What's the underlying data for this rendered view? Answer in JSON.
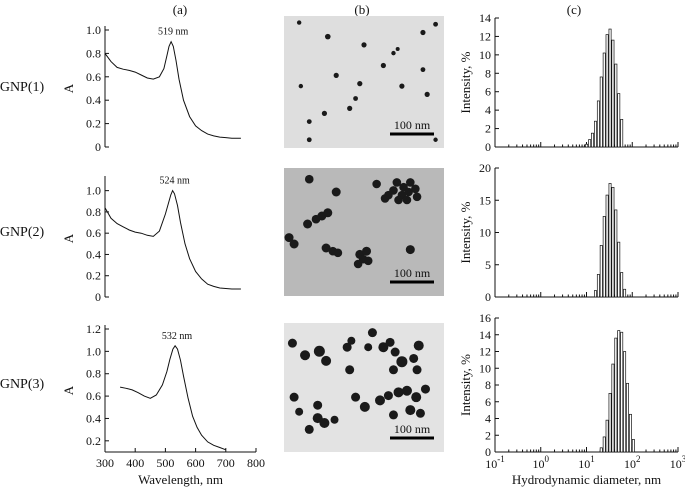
{
  "panel_labels": [
    "(a)",
    "(b)",
    "(c)"
  ],
  "rows": [
    {
      "label": "GNP(1)",
      "peak_label": "519 nm",
      "scale_label": "100 nm"
    },
    {
      "label": "GNP(2)",
      "peak_label": "524 nm",
      "scale_label": "100 nm"
    },
    {
      "label": "GNP(3)",
      "peak_label": "532 nm",
      "scale_label": "100 nm"
    }
  ],
  "chart_data": [
    {
      "type": "line",
      "panel": "a",
      "row": "GNP(1)",
      "xlabel": "",
      "ylabel": "A",
      "xlim": [
        300,
        800
      ],
      "ylim": [
        0,
        1.0
      ],
      "yticks": [
        "0",
        "0.2",
        "0.4",
        "0.6",
        "0.8",
        "1.0"
      ],
      "peak": {
        "x": 519,
        "y": 0.9
      },
      "series": [
        {
          "x": [
            300,
            320,
            340,
            360,
            380,
            400,
            420,
            440,
            460,
            480,
            495,
            505,
            512,
            519,
            526,
            535,
            545,
            560,
            580,
            600,
            620,
            640,
            660,
            680,
            700,
            720,
            750
          ],
          "y": [
            0.8,
            0.73,
            0.68,
            0.665,
            0.655,
            0.64,
            0.615,
            0.59,
            0.58,
            0.6,
            0.67,
            0.78,
            0.86,
            0.9,
            0.86,
            0.74,
            0.58,
            0.4,
            0.26,
            0.18,
            0.14,
            0.11,
            0.095,
            0.085,
            0.08,
            0.075,
            0.075
          ]
        }
      ]
    },
    {
      "type": "line",
      "panel": "a",
      "row": "GNP(2)",
      "xlabel": "",
      "ylabel": "A",
      "xlim": [
        300,
        800
      ],
      "ylim": [
        0,
        1.1
      ],
      "yticks": [
        "0",
        "0.2",
        "0.4",
        "0.6",
        "0.8",
        "1.0"
      ],
      "peak": {
        "x": 524,
        "y": 1.0
      },
      "series": [
        {
          "x": [
            300,
            320,
            340,
            360,
            380,
            400,
            420,
            440,
            460,
            480,
            500,
            510,
            518,
            524,
            530,
            540,
            550,
            565,
            580,
            600,
            620,
            640,
            660,
            680,
            700,
            720,
            750
          ],
          "y": [
            0.84,
            0.74,
            0.69,
            0.66,
            0.63,
            0.61,
            0.6,
            0.58,
            0.57,
            0.62,
            0.78,
            0.88,
            0.96,
            1.0,
            0.97,
            0.86,
            0.7,
            0.5,
            0.36,
            0.24,
            0.17,
            0.12,
            0.1,
            0.085,
            0.08,
            0.075,
            0.075
          ]
        }
      ]
    },
    {
      "type": "line",
      "panel": "a",
      "row": "GNP(3)",
      "xlabel": "Wavelength, nm",
      "ylabel": "A",
      "xlim": [
        300,
        800
      ],
      "ylim": [
        0.1,
        1.2
      ],
      "xticks": [
        "300",
        "400",
        "500",
        "600",
        "700",
        "800"
      ],
      "yticks": [
        "0.2",
        "0.4",
        "0.6",
        "0.8",
        "1.0",
        "1.2"
      ],
      "peak": {
        "x": 532,
        "y": 1.05
      },
      "series": [
        {
          "x": [
            350,
            370,
            390,
            410,
            430,
            450,
            470,
            490,
            505,
            515,
            525,
            532,
            540,
            550,
            560,
            575,
            590,
            605,
            620,
            640,
            660,
            680,
            700
          ],
          "y": [
            0.68,
            0.67,
            0.655,
            0.63,
            0.6,
            0.58,
            0.61,
            0.7,
            0.82,
            0.93,
            1.02,
            1.05,
            1.02,
            0.92,
            0.78,
            0.58,
            0.42,
            0.32,
            0.25,
            0.19,
            0.16,
            0.14,
            0.12
          ]
        }
      ]
    },
    {
      "type": "bar",
      "panel": "c",
      "row": "GNP(1)",
      "xlabel": "",
      "ylabel": "Intensity, %",
      "xscale": "log",
      "xlim": [
        0.1,
        1000
      ],
      "ylim": [
        0,
        14
      ],
      "yticks": [
        "0",
        "2",
        "4",
        "6",
        "8",
        "10",
        "12",
        "14"
      ],
      "x": [
        10.1,
        11.7,
        13.5,
        15.7,
        18.2,
        21.0,
        24.4,
        28.2,
        32.7,
        37.8,
        43.8,
        50.7,
        58.8
      ],
      "values": [
        0.3,
        0.8,
        1.5,
        2.8,
        5.0,
        7.6,
        10.2,
        12.2,
        12.8,
        11.6,
        9.0,
        5.8,
        3.0
      ]
    },
    {
      "type": "bar",
      "panel": "c",
      "row": "GNP(2)",
      "xlabel": "",
      "ylabel": "Intensity, %",
      "xscale": "log",
      "xlim": [
        0.1,
        1000
      ],
      "ylim": [
        0,
        20
      ],
      "yticks": [
        "0",
        "5",
        "10",
        "15",
        "20"
      ],
      "x": [
        15.7,
        18.2,
        21.0,
        24.4,
        28.2,
        32.7,
        37.8,
        43.8,
        50.7,
        58.8,
        68.1
      ],
      "values": [
        1.0,
        3.5,
        8.0,
        12.5,
        15.8,
        17.6,
        17.0,
        13.5,
        8.5,
        3.8,
        1.2
      ]
    },
    {
      "type": "bar",
      "panel": "c",
      "row": "GNP(3)",
      "xlabel": "Hydrodynamic diameter, nm",
      "ylabel": "Intensity, %",
      "xscale": "log",
      "xlim": [
        0.1,
        1000
      ],
      "ylim": [
        0,
        16
      ],
      "yticks": [
        "0",
        "2",
        "4",
        "6",
        "8",
        "10",
        "12",
        "14",
        "16"
      ],
      "xticks": [
        "10^-1",
        "10^0",
        "10^1",
        "10^2",
        "10^3"
      ],
      "x": [
        21.0,
        24.4,
        28.2,
        32.7,
        37.8,
        43.8,
        50.7,
        58.8,
        68.1,
        78.8,
        91.3,
        105.7
      ],
      "values": [
        0.5,
        1.8,
        3.8,
        7.0,
        10.5,
        13.6,
        14.5,
        14.3,
        12.0,
        8.2,
        4.5,
        1.5
      ]
    }
  ],
  "tem_images": [
    {
      "row": "GNP(1)",
      "background": "#dedede",
      "particles": [
        [
          18,
          8,
          2.2
        ],
        [
          52,
          25,
          2.8
        ],
        [
          95,
          35,
          2.6
        ],
        [
          20,
          85,
          2.2
        ],
        [
          165,
          20,
          2.6
        ],
        [
          180,
          10,
          2.4
        ],
        [
          118,
          60,
          2.6
        ],
        [
          62,
          72,
          2.6
        ],
        [
          90,
          82,
          2.6
        ],
        [
          140,
          85,
          2.6
        ],
        [
          130,
          45,
          2.2
        ],
        [
          165,
          65,
          2.4
        ],
        [
          170,
          95,
          2.6
        ],
        [
          78,
          112,
          2.6
        ],
        [
          48,
          118,
          2.6
        ],
        [
          30,
          128,
          2.4
        ],
        [
          30,
          150,
          2.4
        ],
        [
          180,
          150,
          2.2
        ],
        [
          135,
          40,
          2.0
        ],
        [
          85,
          100,
          2.4
        ]
      ]
    },
    {
      "row": "GNP(2)",
      "background": "#b9b9b9",
      "particles": [
        [
          134,
          18,
          4.3
        ],
        [
          142,
          24,
          4.3
        ],
        [
          150,
          18,
          4.3
        ],
        [
          130,
          28,
          4.3
        ],
        [
          124,
          34,
          4.3
        ],
        [
          140,
          34,
          4.3
        ],
        [
          148,
          30,
          4.3
        ],
        [
          156,
          26,
          4.3
        ],
        [
          136,
          40,
          4.3
        ],
        [
          146,
          40,
          4.3
        ],
        [
          120,
          38,
          4.3
        ],
        [
          158,
          36,
          4.3
        ],
        [
          62,
          30,
          4.5
        ],
        [
          45,
          60,
          4.5
        ],
        [
          52,
          56,
          4.5
        ],
        [
          38,
          64,
          4.3
        ],
        [
          28,
          70,
          4.5
        ],
        [
          6,
          87,
          4.5
        ],
        [
          12,
          95,
          4.5
        ],
        [
          50,
          100,
          4.5
        ],
        [
          58,
          104,
          4.3
        ],
        [
          64,
          106,
          4.3
        ],
        [
          90,
          108,
          4.5
        ],
        [
          98,
          104,
          4.5
        ],
        [
          94,
          114,
          4.3
        ],
        [
          100,
          116,
          4.3
        ],
        [
          88,
          120,
          4.3
        ],
        [
          150,
          102,
          4.5
        ],
        [
          30,
          14,
          4.3
        ],
        [
          110,
          20,
          4.3
        ]
      ]
    },
    {
      "row": "GNP(3)",
      "background": "#e3e3e3",
      "particles": [
        [
          10,
          25,
          4.5
        ],
        [
          42,
          35,
          5.5
        ],
        [
          25,
          40,
          5
        ],
        [
          75,
          30,
          4.5
        ],
        [
          80,
          22,
          4
        ],
        [
          100,
          30,
          4
        ],
        [
          118,
          30,
          5
        ],
        [
          126,
          24,
          4.5
        ],
        [
          132,
          36,
          4.5
        ],
        [
          140,
          48,
          5.5
        ],
        [
          154,
          44,
          4.5
        ],
        [
          160,
          28,
          5
        ],
        [
          105,
          12,
          4.5
        ],
        [
          146,
          84,
          5
        ],
        [
          157,
          92,
          5
        ],
        [
          168,
          82,
          4.5
        ],
        [
          50,
          47,
          5
        ],
        [
          78,
          58,
          4.5
        ],
        [
          130,
          58,
          4.5
        ],
        [
          158,
          58,
          4.5
        ],
        [
          12,
          92,
          4.5
        ],
        [
          40,
          118,
          5
        ],
        [
          48,
          124,
          5
        ],
        [
          40,
          102,
          4.5
        ],
        [
          85,
          92,
          4.5
        ],
        [
          96,
          104,
          5
        ],
        [
          114,
          96,
          5
        ],
        [
          124,
          90,
          4.5
        ],
        [
          136,
          86,
          5
        ],
        [
          150,
          108,
          5
        ],
        [
          162,
          112,
          4.5
        ],
        [
          130,
          114,
          4.5
        ],
        [
          30,
          132,
          4.5
        ],
        [
          60,
          120,
          4
        ],
        [
          18,
          110,
          4
        ]
      ]
    }
  ]
}
